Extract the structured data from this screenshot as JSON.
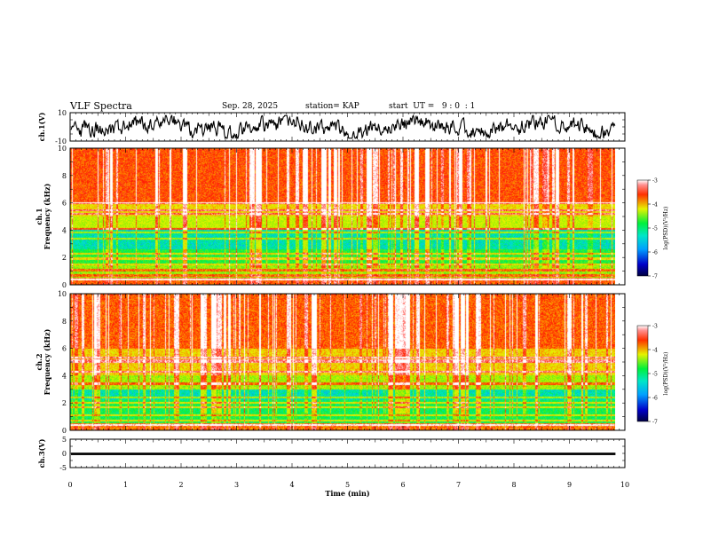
{
  "header": {
    "title": "VLF Spectra",
    "date": "Sep. 28, 2025",
    "station": "station= KAP",
    "start": "start  UT =   9 : 0  : 1"
  },
  "chart_data": [
    {
      "type": "line",
      "panel": "ch1-waveform",
      "ylabel": "ch.1(V)",
      "ylim": [
        -10,
        10
      ],
      "y_ticks": [
        "10",
        "-10"
      ],
      "xlim": [
        0,
        10
      ]
    },
    {
      "type": "heatmap",
      "panel": "ch1-spectrogram",
      "ylabel": "ch.1 Frequency (kHz)",
      "ylim": [
        0,
        10
      ],
      "y_ticks": [
        "0",
        "2",
        "4",
        "6",
        "8",
        "10"
      ],
      "xlim": [
        0,
        10
      ],
      "data_xmax": 9.83,
      "colorbar": {
        "label": "log(PSD)(V²/Hz)",
        "ticks": [
          "-3",
          "-4",
          "-5",
          "-6",
          "-7"
        ],
        "range": [
          -7,
          -3
        ]
      }
    },
    {
      "type": "heatmap",
      "panel": "ch2-spectrogram",
      "ylabel": "ch.2 Frequency (kHz)",
      "ylim": [
        0,
        10
      ],
      "y_ticks": [
        "0",
        "2",
        "4",
        "6",
        "8",
        "10"
      ],
      "xlim": [
        0,
        10
      ],
      "data_xmax": 9.83,
      "colorbar": {
        "label": "log(PSD)(V²/Hz)",
        "ticks": [
          "-3",
          "-4",
          "-5",
          "-6",
          "-7"
        ],
        "range": [
          -7,
          -3
        ]
      }
    },
    {
      "type": "line",
      "panel": "ch3-waveform",
      "ylabel": "ch.3(V)",
      "ylim": [
        -5,
        5
      ],
      "y_ticks": [
        "5",
        "0",
        "-5"
      ],
      "xlim": [
        0,
        10
      ],
      "xlabel": "Time (min)",
      "x_ticks": [
        "0",
        "1",
        "2",
        "3",
        "4",
        "5",
        "6",
        "7",
        "8",
        "9",
        "10"
      ]
    }
  ],
  "colors": {
    "red": "#ff1a00",
    "yellow": "#e6f200",
    "green": "#00f03c",
    "cyan": "#00e6e6",
    "blue": "#0040ff",
    "navy": "#000080",
    "black": "#000000"
  }
}
